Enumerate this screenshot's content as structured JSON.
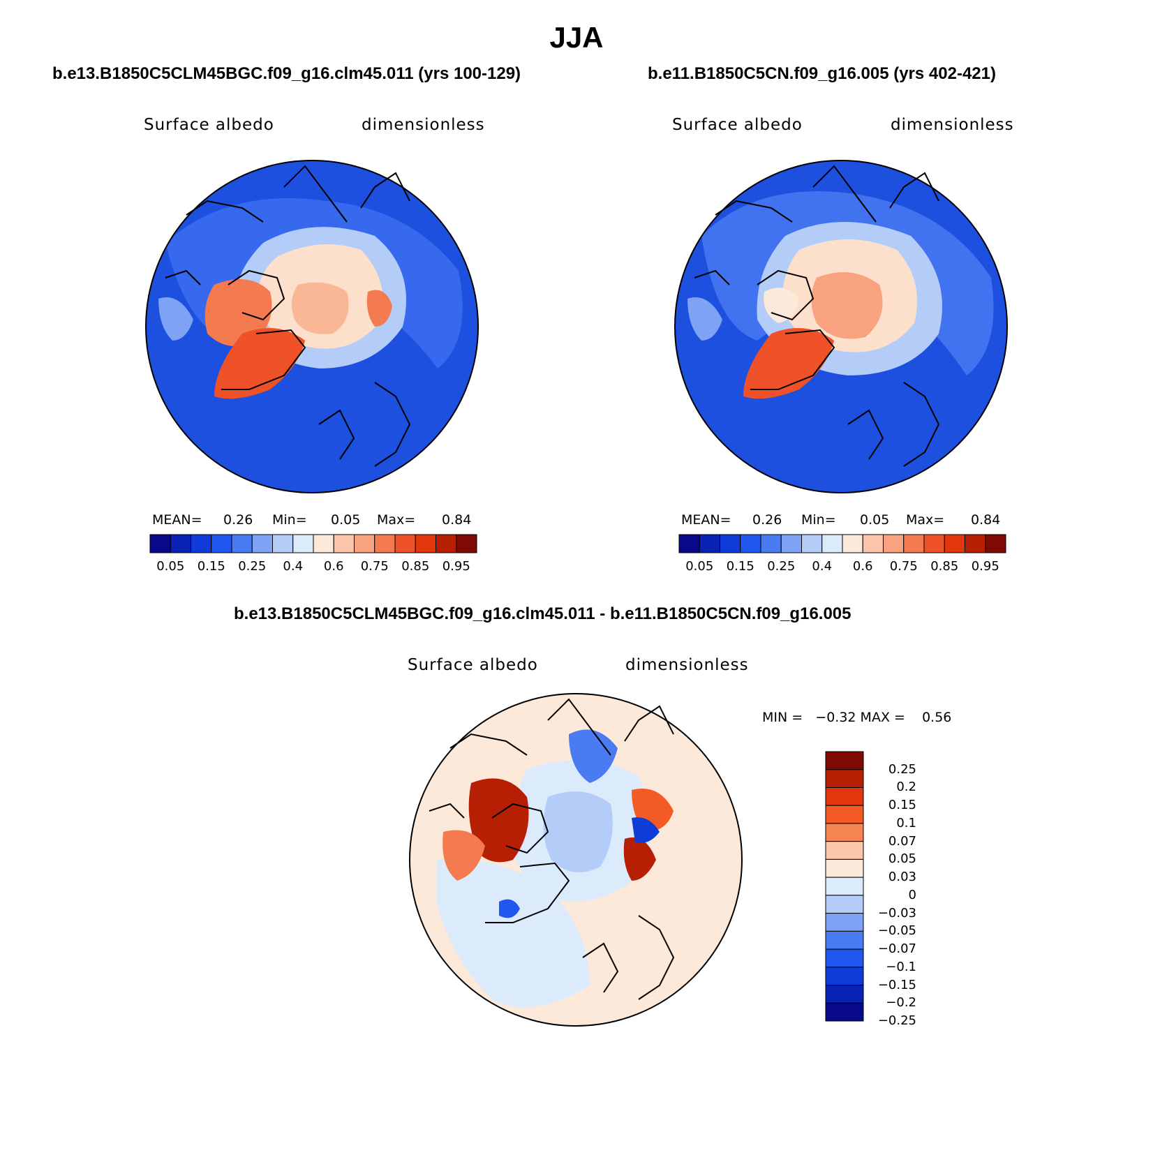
{
  "title": "JJA",
  "panels": [
    {
      "case": "b.e13.B1850C5CLM45BGC.f09_g16.clm45.011 (yrs 100-129)",
      "variable": "Surface albedo",
      "units": "dimensionless",
      "stats": {
        "mean_label": "MEAN=",
        "mean": "0.26",
        "min_label": "Min=",
        "min": "0.05",
        "max_label": "Max=",
        "max": "0.84"
      }
    },
    {
      "case": "b.e11.B1850C5CN.f09_g16.005 (yrs 402-421)",
      "variable": "Surface albedo",
      "units": "dimensionless",
      "stats": {
        "mean_label": "MEAN=",
        "mean": "0.26",
        "min_label": "Min=",
        "min": "0.05",
        "max_label": "Max=",
        "max": "0.84"
      }
    }
  ],
  "abs_colorbar": {
    "colors": [
      "#08088a",
      "#0a22b4",
      "#0f3bd9",
      "#2157ee",
      "#4a7bf2",
      "#7ea3f5",
      "#b3cdf8",
      "#dcebfb",
      "#fde9da",
      "#fbc6ab",
      "#f8a27f",
      "#f47a50",
      "#ef5228",
      "#e2360c",
      "#b71f05",
      "#7e0a03"
    ],
    "labels": [
      "0.05",
      "0.15",
      "0.25",
      "0.4",
      "0.6",
      "0.75",
      "0.85",
      "0.95"
    ]
  },
  "diff": {
    "case": "b.e13.B1850C5CLM45BGC.f09_g16.clm45.011 - b.e11.B1850C5CN.f09_g16.005",
    "variable": "Surface albedo",
    "units": "dimensionless",
    "stats": "MIN =   −0.32 MAX =    0.56",
    "colorbar": {
      "colors": [
        "#7e0a03",
        "#b71f05",
        "#e2360c",
        "#f35a25",
        "#f68553",
        "#fbc6ab",
        "#fde9da",
        "#dcebfb",
        "#b3cdf8",
        "#7ea3f5",
        "#4a7bf2",
        "#2157ee",
        "#0f3bd9",
        "#0a22b4",
        "#08088a"
      ],
      "labels": [
        "0.25",
        "0.2",
        "0.15",
        "0.1",
        "0.07",
        "0.05",
        "0.03",
        "0",
        "−0.03",
        "−0.05",
        "−0.07",
        "−0.1",
        "−0.15",
        "−0.2",
        "−0.25"
      ]
    }
  }
}
